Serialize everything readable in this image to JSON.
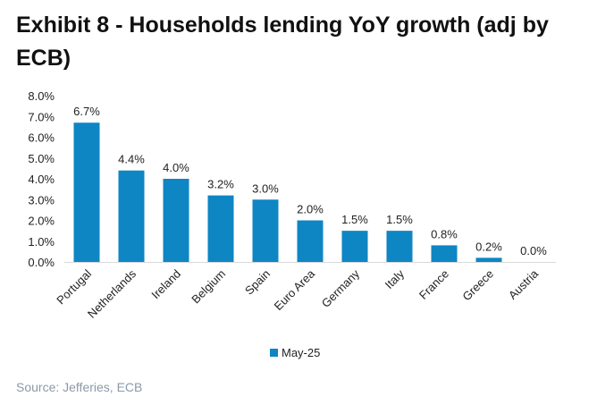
{
  "title": "Exhibit 8 - Households lending YoY growth (adj by ECB)",
  "source": "Source: Jefferies, ECB",
  "colors": {
    "bar": "#0e86c4",
    "axis": "#d9d9d9",
    "text": "#222222",
    "source": "#8c99a8"
  },
  "chart_data": {
    "type": "bar",
    "categories": [
      "Portugal",
      "Netherlands",
      "Ireland",
      "Belgium",
      "Spain",
      "Euro Area",
      "Germany",
      "Italy",
      "France",
      "Greece",
      "Austria"
    ],
    "series": [
      {
        "name": "May-25",
        "values": [
          6.7,
          4.4,
          4.0,
          3.2,
          3.0,
          2.0,
          1.5,
          1.5,
          0.8,
          0.2,
          0.0
        ]
      }
    ],
    "data_labels": [
      "6.7%",
      "4.4%",
      "4.0%",
      "3.2%",
      "3.0%",
      "2.0%",
      "1.5%",
      "1.5%",
      "0.8%",
      "0.2%",
      "0.0%"
    ],
    "y_ticks": [
      "0.0%",
      "1.0%",
      "2.0%",
      "3.0%",
      "4.0%",
      "5.0%",
      "6.0%",
      "7.0%",
      "8.0%"
    ],
    "ylim": [
      0,
      8
    ],
    "grid": false,
    "legend_position": "bottom"
  }
}
